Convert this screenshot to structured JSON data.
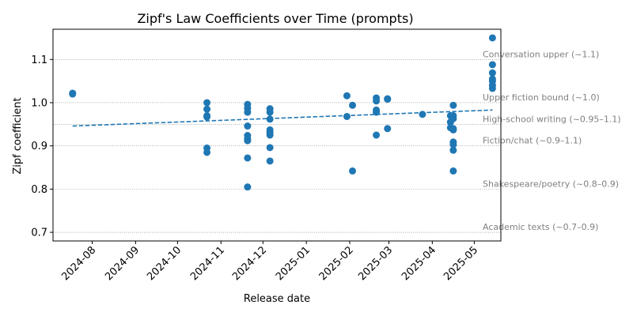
{
  "chart_data": {
    "type": "scatter",
    "title": "Zipf's Law Coefficients over Time (prompts)",
    "xlabel": "Release date",
    "ylabel": "Zipf coefficient",
    "xlim": [
      "2024-07-04",
      "2025-05-20"
    ],
    "ylim": [
      0.68,
      1.17
    ],
    "x_ticks": [
      "2024-08",
      "2024-09",
      "2024-10",
      "2024-11",
      "2024-12",
      "2025-01",
      "2025-02",
      "2025-03",
      "2025-04",
      "2025-05"
    ],
    "y_ticks": [
      0.7,
      0.8,
      0.9,
      1.0,
      1.1
    ],
    "y_tick_labels": [
      "0.7",
      "0.8",
      "0.9",
      "1.0",
      "1.1"
    ],
    "grid": false,
    "colors": {
      "points": "#1f77b4",
      "trend": "#1f77b4",
      "reference": "#808080"
    },
    "points": [
      {
        "x": "2024-07-18",
        "y": 1.022
      },
      {
        "x": "2024-07-18",
        "y": 1.02
      },
      {
        "x": "2024-10-22",
        "y": 1.0
      },
      {
        "x": "2024-10-22",
        "y": 0.985
      },
      {
        "x": "2024-10-22",
        "y": 0.97
      },
      {
        "x": "2024-10-22",
        "y": 0.967
      },
      {
        "x": "2024-10-22",
        "y": 0.895
      },
      {
        "x": "2024-10-22",
        "y": 0.885
      },
      {
        "x": "2024-11-20",
        "y": 0.996
      },
      {
        "x": "2024-11-20",
        "y": 0.987
      },
      {
        "x": "2024-11-20",
        "y": 0.978
      },
      {
        "x": "2024-11-20",
        "y": 0.946
      },
      {
        "x": "2024-11-20",
        "y": 0.924
      },
      {
        "x": "2024-11-20",
        "y": 0.917
      },
      {
        "x": "2024-11-20",
        "y": 0.912
      },
      {
        "x": "2024-11-20",
        "y": 0.872
      },
      {
        "x": "2024-11-20",
        "y": 0.805
      },
      {
        "x": "2024-12-06",
        "y": 0.986
      },
      {
        "x": "2024-12-06",
        "y": 0.978
      },
      {
        "x": "2024-12-06",
        "y": 0.962
      },
      {
        "x": "2024-12-06",
        "y": 0.937
      },
      {
        "x": "2024-12-06",
        "y": 0.931
      },
      {
        "x": "2024-12-06",
        "y": 0.925
      },
      {
        "x": "2024-12-06",
        "y": 0.896
      },
      {
        "x": "2024-12-06",
        "y": 0.865
      },
      {
        "x": "2025-01-30",
        "y": 1.016
      },
      {
        "x": "2025-01-30",
        "y": 0.968
      },
      {
        "x": "2025-02-03",
        "y": 0.994
      },
      {
        "x": "2025-02-03",
        "y": 0.842
      },
      {
        "x": "2025-02-20",
        "y": 1.011
      },
      {
        "x": "2025-02-20",
        "y": 1.004
      },
      {
        "x": "2025-02-20",
        "y": 0.983
      },
      {
        "x": "2025-02-20",
        "y": 0.978
      },
      {
        "x": "2025-02-20",
        "y": 0.925
      },
      {
        "x": "2025-02-28",
        "y": 1.009
      },
      {
        "x": "2025-02-28",
        "y": 1.008
      },
      {
        "x": "2025-02-28",
        "y": 0.94
      },
      {
        "x": "2025-03-25",
        "y": 0.973
      },
      {
        "x": "2025-04-14",
        "y": 0.97
      },
      {
        "x": "2025-04-14",
        "y": 0.955
      },
      {
        "x": "2025-04-14",
        "y": 0.942
      },
      {
        "x": "2025-04-16",
        "y": 0.994
      },
      {
        "x": "2025-04-16",
        "y": 0.97
      },
      {
        "x": "2025-04-16",
        "y": 0.963
      },
      {
        "x": "2025-04-16",
        "y": 0.94
      },
      {
        "x": "2025-04-16",
        "y": 0.937
      },
      {
        "x": "2025-04-16",
        "y": 0.909
      },
      {
        "x": "2025-04-16",
        "y": 0.903
      },
      {
        "x": "2025-04-16",
        "y": 0.89
      },
      {
        "x": "2025-04-16",
        "y": 0.842
      },
      {
        "x": "2025-05-14",
        "y": 1.15
      },
      {
        "x": "2025-05-14",
        "y": 1.088
      },
      {
        "x": "2025-05-14",
        "y": 1.069
      },
      {
        "x": "2025-05-14",
        "y": 1.055
      },
      {
        "x": "2025-05-14",
        "y": 1.05
      },
      {
        "x": "2025-05-14",
        "y": 1.04
      },
      {
        "x": "2025-05-14",
        "y": 1.033
      }
    ],
    "trend_line": {
      "style": "dashed",
      "start": {
        "x": "2024-07-18",
        "y": 0.946
      },
      "end": {
        "x": "2025-05-14",
        "y": 0.983
      }
    },
    "reference_lines": [
      {
        "y": 1.1,
        "label": "Conversation upper (~1.1)"
      },
      {
        "y": 1.0,
        "label": "Upper fiction bound (~1.0)"
      },
      {
        "y": 0.95,
        "label": "High-school writing (~0.95–1.1)"
      },
      {
        "y": 0.9,
        "label": "Fiction/chat (~0.9–1.1)"
      },
      {
        "y": 0.8,
        "label": "Shakespeare/poetry (~0.8–0.9)"
      },
      {
        "y": 0.7,
        "label": "Academic texts (~0.7–0.9)"
      }
    ]
  }
}
